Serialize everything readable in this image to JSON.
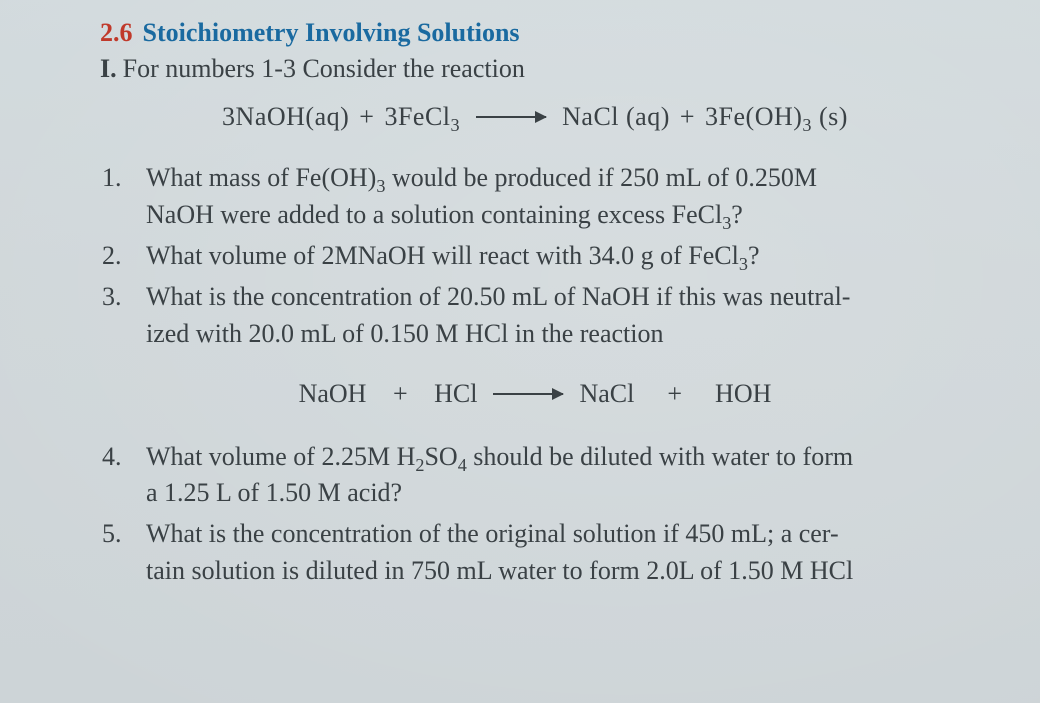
{
  "section": {
    "number": "2.6",
    "title": "Stoichiometry Involving Solutions"
  },
  "instruction": {
    "numeral": "I.",
    "text": "For numbers 1-3  Consider the reaction"
  },
  "equation1": {
    "lhs1": "3NaOH(aq)",
    "plus1": "+",
    "lhs2_base": "3FeCl",
    "lhs2_sub": "3",
    "rhs1": "NaCl (aq)",
    "plus2": "+",
    "rhs2_base": "3Fe(OH)",
    "rhs2_sub": "3",
    "rhs2_state": " (s)"
  },
  "q1": {
    "l1a": "What mass of Fe(OH)",
    "l1sub": "3",
    "l1b": " would be produced if 250 mL of 0.250M",
    "l2a": "NaOH were added to a solution containing excess FeCl",
    "l2sub": "3",
    "l2b": "?"
  },
  "q2": {
    "a": "What volume of 2MNaOH will react with 34.0 g of FeCl",
    "sub": "3",
    "b": "?"
  },
  "q3": {
    "l1": "What is  the concentration of 20.50 mL of NaOH if this was neutral-",
    "l2": "ized with 20.0 mL of 0.150 M HCl in the reaction"
  },
  "equation2": {
    "lhs1": "NaOH",
    "plus1": "+",
    "lhs2": "HCl",
    "rhs1": "NaCl",
    "plus2": "+",
    "rhs2": "HOH"
  },
  "q4": {
    "l1a": "What volume of 2.25M H",
    "sub1": "2",
    "mid": "SO",
    "sub2": "4",
    "l1b": " should be diluted with water to form",
    "l2": "a 1.25 L of 1.50 M acid?"
  },
  "q5": {
    "l1": "What is the concentration of the original solution if 450 mL; a cer-",
    "l2": "tain solution is diluted in 750 mL water to form 2.0L of 1.50 M HCl"
  },
  "colors": {
    "sectionNum": "#c0392b",
    "sectionTitle": "#1a6aa0",
    "bodyText": "#3a4145",
    "pageBg": "#d2dadd"
  },
  "typography": {
    "baseFontSize": 26,
    "fontFamily": "Georgia, Times New Roman, serif"
  }
}
